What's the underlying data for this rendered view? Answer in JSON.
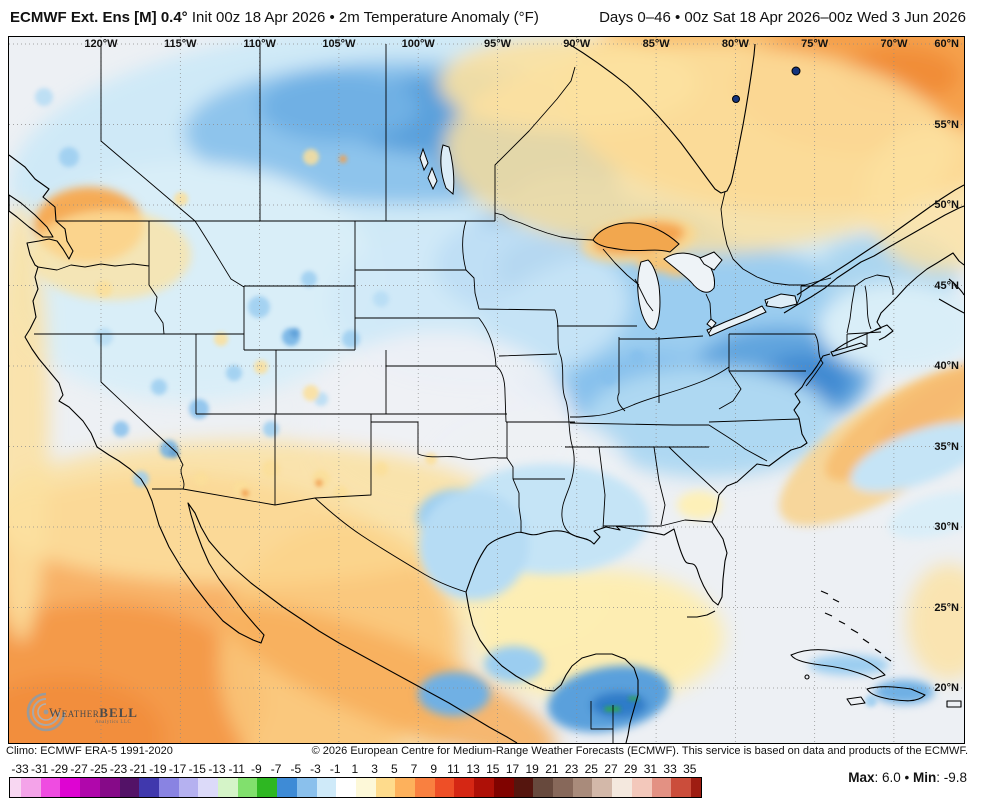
{
  "header": {
    "left_bold": "ECMWF Ext. Ens [M] 0.4°",
    "left_rest": " Init 00z 18 Apr 2026 • 2m Temperature Anomaly (°F)",
    "right": "Days 0–46 • 00z Sat 18 Apr 2026–00z Wed 3 Jun 2026"
  },
  "map": {
    "lon_labels": [
      "120°W",
      "115°W",
      "110°W",
      "105°W",
      "100°W",
      "95°W",
      "90°W",
      "85°W",
      "80°W",
      "75°W",
      "70°W"
    ],
    "lat_labels": [
      "60°N",
      "55°N",
      "50°N",
      "45°N",
      "40°N",
      "35°N",
      "30°N",
      "25°N",
      "20°N"
    ],
    "logo_line1a": "Weather",
    "logo_line1b": "BELL",
    "logo_line2": "Analytics LLC"
  },
  "footer": {
    "climo": "Climo: ECMWF ERA-5 1991-2020",
    "copyright": "© 2026 European Centre for Medium-Range Weather Forecasts (ECMWF). This service is based on data and products of the ECMWF.",
    "max_label": "Max",
    "max_value": ": 6.0",
    "bullet": " • ",
    "min_label": "Min",
    "min_value": ": -9.8"
  },
  "colorbar": {
    "ticks": [
      "-33",
      "-31",
      "-29",
      "-27",
      "-25",
      "-23",
      "-21",
      "-19",
      "-17",
      "-15",
      "-13",
      "-11",
      "-9",
      "-7",
      "-5",
      "-3",
      "-1",
      "1",
      "3",
      "5",
      "7",
      "9",
      "11",
      "13",
      "15",
      "17",
      "19",
      "21",
      "23",
      "25",
      "27",
      "29",
      "31",
      "33",
      "35"
    ],
    "cells": [
      "#f8d7f2",
      "#f4a3e9",
      "#ef4ce1",
      "#de04d2",
      "#b007ab",
      "#860a88",
      "#531267",
      "#4038ad",
      "#8983e2",
      "#b5b1f0",
      "#dcdaf9",
      "#d5f4c8",
      "#81e06d",
      "#2eb722",
      "#3e8bd6",
      "#8ac0ec",
      "#cfeaf9",
      "#ffffff",
      "#fdf8d8",
      "#fedb8c",
      "#fdb15c",
      "#f98040",
      "#ee4f27",
      "#d52714",
      "#ae1007",
      "#800300",
      "#55150e",
      "#67493d",
      "#87685a",
      "#a98b7b",
      "#d3b8a9",
      "#f4e8de",
      "#f3c8bb",
      "#e39183",
      "#cb4d3b",
      "#9e1d12"
    ],
    "accent_cold": "#3e8bd6",
    "accent_warm": "#f5a04c"
  }
}
